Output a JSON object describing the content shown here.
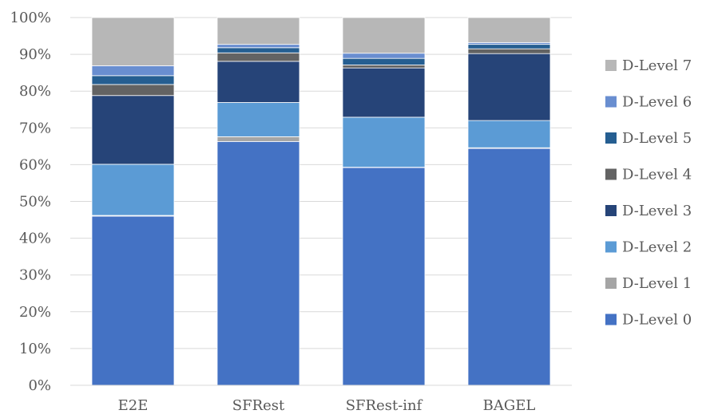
{
  "chart_data": {
    "type": "bar",
    "stacked": true,
    "title": "",
    "xlabel": "",
    "ylabel": "",
    "ylim": [
      0,
      100
    ],
    "y_tick_format": "percent",
    "y_ticks": [
      "0%",
      "10%",
      "20%",
      "30%",
      "40%",
      "50%",
      "60%",
      "70%",
      "80%",
      "90%",
      "100%"
    ],
    "grid": true,
    "legend_position": "right",
    "categories": [
      "E2E",
      "SFRest",
      "SFRest-inf",
      "BAGEL"
    ],
    "series": [
      {
        "name": "D-Level 0",
        "color": "#4472C4",
        "values": [
          46.0,
          66.3,
          59.2,
          64.4
        ]
      },
      {
        "name": "D-Level 1",
        "color": "#A5A5A5",
        "values": [
          0.2,
          1.3,
          0.1,
          0.2
        ]
      },
      {
        "name": "D-Level 2",
        "color": "#5B9BD5",
        "values": [
          13.9,
          9.3,
          13.6,
          7.4
        ]
      },
      {
        "name": "D-Level 3",
        "color": "#264478",
        "values": [
          18.7,
          11.2,
          13.4,
          18.2
        ]
      },
      {
        "name": "D-Level 4",
        "color": "#636363",
        "values": [
          3.0,
          2.3,
          0.8,
          1.3
        ]
      },
      {
        "name": "D-Level 5",
        "color": "#255E91",
        "values": [
          2.4,
          1.4,
          1.8,
          1.2
        ]
      },
      {
        "name": "D-Level 6",
        "color": "#698ED0",
        "values": [
          2.7,
          0.9,
          1.4,
          0.5
        ]
      },
      {
        "name": "D-Level 7",
        "color": "#B7B7B7",
        "values": [
          13.1,
          7.3,
          9.7,
          6.8
        ]
      }
    ]
  }
}
